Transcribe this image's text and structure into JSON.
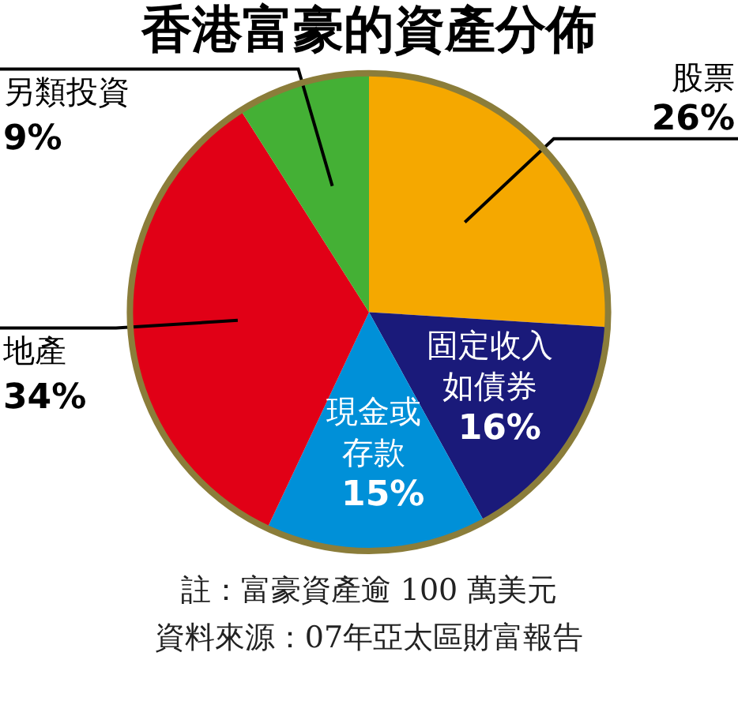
{
  "chart_data": {
    "type": "pie",
    "title": "香港富豪的資產分佈",
    "categories": [
      "股票",
      "固定收入如債券",
      "現金或存款",
      "地產",
      "另類投資"
    ],
    "values": [
      26,
      16,
      15,
      34,
      9
    ],
    "value_labels": [
      "26%",
      "16%",
      "15%",
      "34%",
      "9%"
    ],
    "colors": [
      "#f5a800",
      "#1a1a7a",
      "#0090d8",
      "#e10016",
      "#44b035"
    ],
    "annotations": [
      "註：富豪資產逾 100 萬美元",
      "資料來源：07年亞太區財富報告"
    ],
    "legend": false
  }
}
